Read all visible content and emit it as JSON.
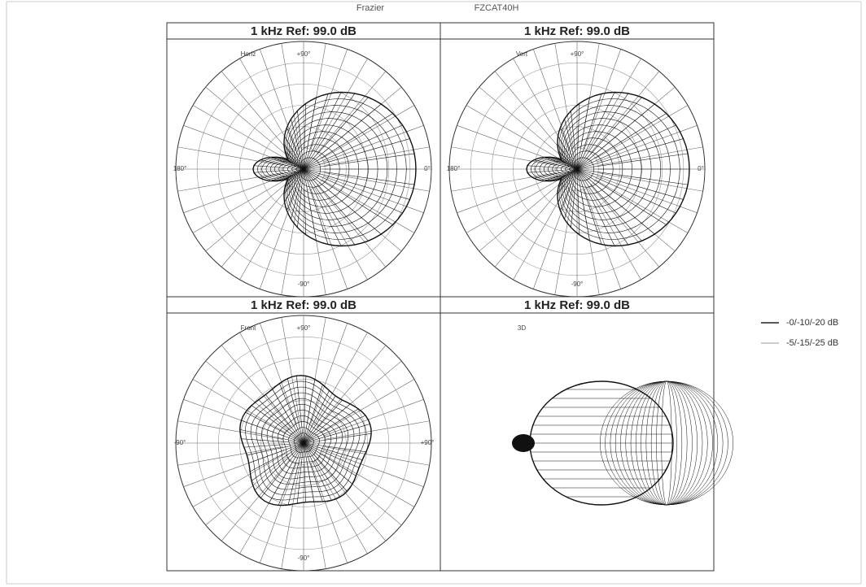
{
  "header": {
    "maker": "Frazier",
    "model": "FZCAT40H"
  },
  "panels": [
    {
      "title": "1 kHz Ref: 99.0 dB",
      "view": "Horiz",
      "labels": {
        "top": "+90°",
        "left": "180°",
        "right": "0°",
        "bottom": "-90°"
      }
    },
    {
      "title": "1 kHz Ref: 99.0 dB",
      "view": "Vert",
      "labels": {
        "top": "+90°",
        "left": "180°",
        "right": "0°",
        "bottom": "-90°"
      }
    },
    {
      "title": "1 kHz Ref: 99.0 dB",
      "view": "Front",
      "labels": {
        "top": "+90°",
        "left": "-90°",
        "right": "+90°",
        "bottom": "-90°"
      }
    },
    {
      "title": "1 kHz Ref: 99.0 dB",
      "view": "3D"
    }
  ],
  "legend": [
    {
      "label": "-0/-10/-20 dB",
      "color": "#222222"
    },
    {
      "label": "-5/-15/-25 dB",
      "color": "#bbbbbb"
    }
  ]
}
